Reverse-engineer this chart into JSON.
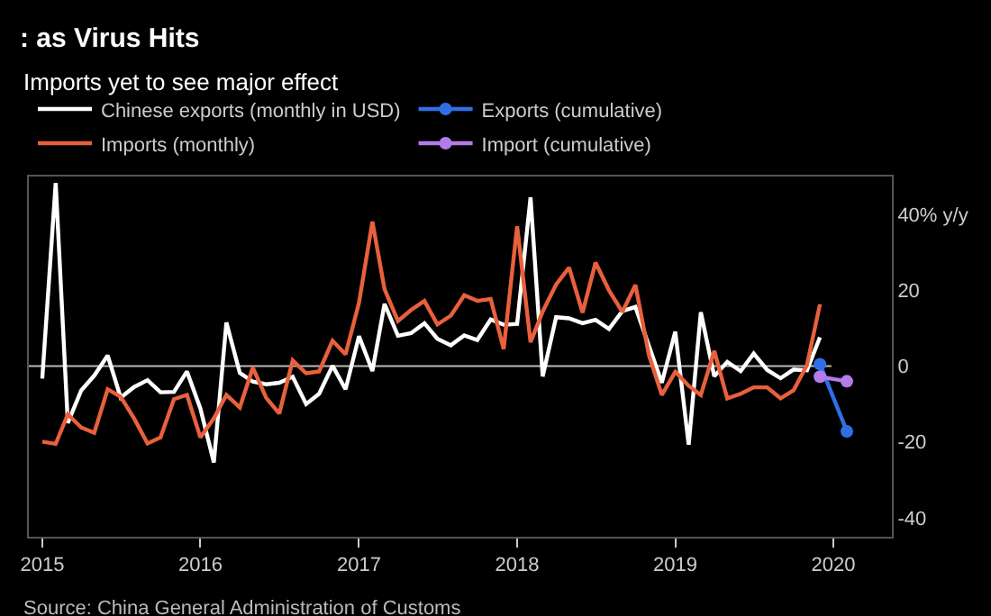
{
  "chart_data": {
    "type": "line",
    "title": ": as Virus Hits",
    "subtitle": "Imports yet to see major effect",
    "x": [
      "2015-01",
      "2015-02",
      "2015-03",
      "2015-04",
      "2015-05",
      "2015-06",
      "2015-07",
      "2015-08",
      "2015-09",
      "2015-10",
      "2015-11",
      "2015-12",
      "2016-01",
      "2016-02",
      "2016-03",
      "2016-04",
      "2016-05",
      "2016-06",
      "2016-07",
      "2016-08",
      "2016-09",
      "2016-10",
      "2016-11",
      "2016-12",
      "2017-01",
      "2017-02",
      "2017-03",
      "2017-04",
      "2017-05",
      "2017-06",
      "2017-07",
      "2017-08",
      "2017-09",
      "2017-10",
      "2017-11",
      "2017-12",
      "2018-01",
      "2018-02",
      "2018-03",
      "2018-04",
      "2018-05",
      "2018-06",
      "2018-07",
      "2018-08",
      "2018-09",
      "2018-10",
      "2018-11",
      "2018-12",
      "2019-01",
      "2019-02",
      "2019-03",
      "2019-04",
      "2019-05",
      "2019-06",
      "2019-07",
      "2019-08",
      "2019-09",
      "2019-10",
      "2019-11",
      "2019-12"
    ],
    "series": [
      {
        "name": "Chinese exports (monthly in USD)",
        "color": "#ffffff",
        "values": [
          -3.3,
          48.3,
          -15.0,
          -6.4,
          -2.5,
          2.8,
          -8.3,
          -5.5,
          -3.7,
          -6.9,
          -6.8,
          -1.4,
          -11.2,
          -25.4,
          11.5,
          -1.8,
          -4.1,
          -4.8,
          -4.4,
          -2.8,
          -10.0,
          -7.3,
          0.1,
          -6.1,
          7.9,
          -1.3,
          16.4,
          8.0,
          8.7,
          11.3,
          7.2,
          5.5,
          8.1,
          6.9,
          12.3,
          10.9,
          11.1,
          44.5,
          -2.7,
          12.9,
          12.6,
          11.3,
          12.2,
          9.8,
          14.5,
          15.6,
          5.4,
          -4.4,
          9.1,
          -20.7,
          14.2,
          -2.7,
          1.1,
          -1.3,
          3.3,
          -1.0,
          -3.2,
          -0.9,
          -1.1,
          7.6
        ]
      },
      {
        "name": "Exports (cumulative)",
        "color": "#2f6fe6",
        "x": [
          "2019-12",
          "2020-02"
        ],
        "values": [
          0.5,
          -17.2
        ],
        "marker": "circle"
      },
      {
        "name": "Imports (monthly)",
        "color": "#e8603c",
        "values": [
          -19.9,
          -20.5,
          -12.7,
          -16.2,
          -17.6,
          -6.1,
          -8.1,
          -13.8,
          -20.4,
          -18.8,
          -8.7,
          -7.6,
          -18.8,
          -13.8,
          -7.6,
          -10.9,
          -0.4,
          -8.4,
          -12.5,
          1.5,
          -1.9,
          -1.4,
          6.7,
          3.1,
          16.7,
          38.1,
          20.3,
          11.9,
          14.8,
          17.2,
          11.0,
          13.3,
          18.7,
          17.2,
          17.7,
          4.5,
          36.9,
          6.3,
          14.4,
          21.5,
          26.0,
          14.1,
          27.3,
          20.0,
          14.3,
          21.4,
          3.0,
          -7.6,
          -1.5,
          -5.2,
          -7.6,
          4.0,
          -8.5,
          -7.3,
          -5.6,
          -5.6,
          -8.5,
          -6.4,
          0.3,
          16.3
        ]
      },
      {
        "name": "Import (cumulative)",
        "color": "#b57be8",
        "x": [
          "2019-12",
          "2020-02"
        ],
        "values": [
          -2.8,
          -4.0
        ],
        "marker": "circle"
      }
    ],
    "xticks": [
      {
        "value": "2015-01-01",
        "label": "2015"
      },
      {
        "value": "2016-01-01",
        "label": "2016"
      },
      {
        "value": "2017-01-01",
        "label": "2017"
      },
      {
        "value": "2018-01-01",
        "label": "2018"
      },
      {
        "value": "2019-01-01",
        "label": "2019"
      },
      {
        "value": "2020-01-01",
        "label": "2020"
      }
    ],
    "xlim": [
      "2014-12-01",
      "2020-05-15"
    ],
    "ylim": [
      -45,
      50
    ],
    "yticks": [
      {
        "value": 40,
        "label": "40% y/y"
      },
      20,
      0,
      -20,
      -40
    ],
    "ref_lines": [
      {
        "axis": "y",
        "value": 0,
        "color": "#bbbbbb"
      }
    ],
    "grid": false,
    "legend": "top left",
    "annotations": [
      "Source: China General Administration of Customs"
    ]
  }
}
